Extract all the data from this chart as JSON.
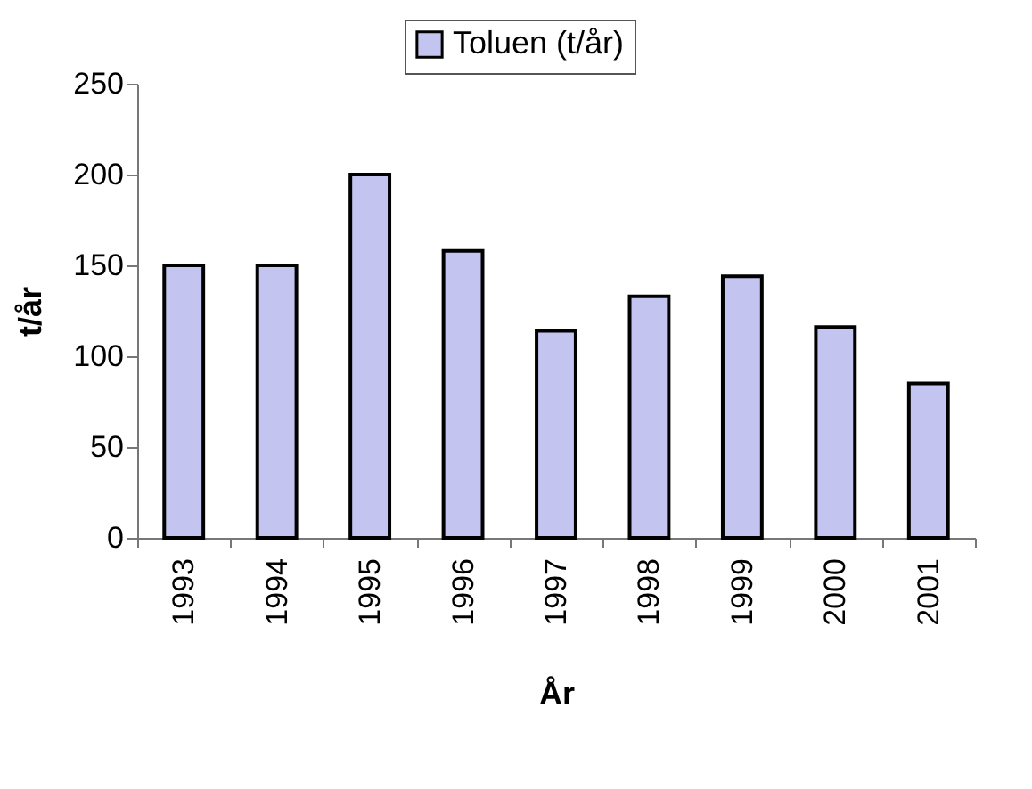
{
  "chart_data": {
    "type": "bar",
    "xlabel": "År",
    "ylabel": "t/år",
    "categories": [
      "1993",
      "1994",
      "1995",
      "1996",
      "1997",
      "1998",
      "1999",
      "2000",
      "2001"
    ],
    "series": [
      {
        "name": "Toluen (t/år)",
        "color": "#c4c4f0",
        "values": [
          150,
          150,
          200,
          158,
          114,
          133,
          144,
          116,
          85
        ]
      }
    ],
    "ylim": [
      0,
      250
    ],
    "yticks": [
      0,
      50,
      100,
      150,
      200,
      250
    ],
    "grid": false,
    "legend": "top"
  }
}
